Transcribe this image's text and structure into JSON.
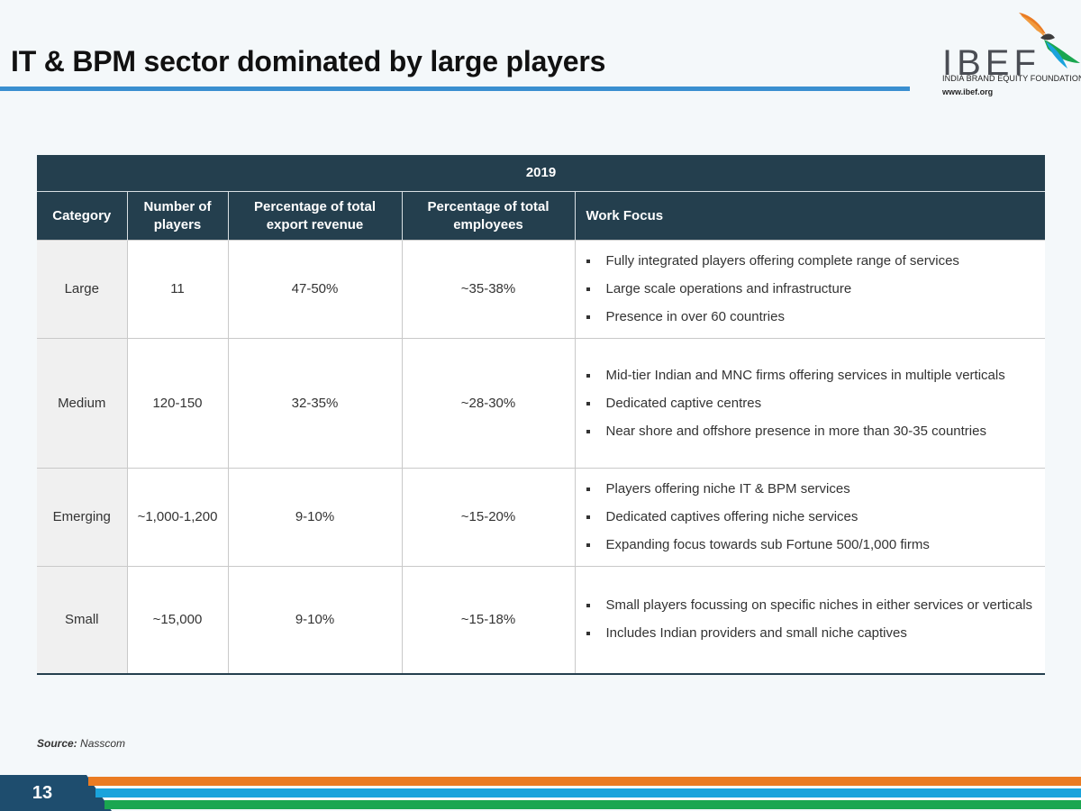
{
  "page": {
    "title": "IT & BPM sector dominated by large players",
    "page_number": "13"
  },
  "logo": {
    "wordmark": "IBEF",
    "foundation": "INDIA BRAND EQUITY FOUNDATION",
    "url": "www.ibef.org"
  },
  "table": {
    "year": "2019",
    "headers": [
      "Category",
      "Number of players",
      "Percentage of total export revenue",
      "Percentage of total employees",
      "Work Focus"
    ],
    "rows": [
      {
        "category": "Large",
        "players": "11",
        "export_revenue": "47-50%",
        "employees": "~35-38%",
        "focus": [
          "Fully integrated players offering complete range of services",
          "Large scale operations and infrastructure",
          "Presence in over 60 countries"
        ]
      },
      {
        "category": "Medium",
        "players": "120-150",
        "export_revenue": "32-35%",
        "employees": "~28-30%",
        "focus": [
          "Mid-tier Indian and MNC firms offering services in multiple verticals",
          "Dedicated captive centres",
          "Near shore and offshore presence in more than 30-35 countries"
        ]
      },
      {
        "category": "Emerging",
        "players": "~1,000-1,200",
        "export_revenue": "9-10%",
        "employees": "~15-20%",
        "focus": [
          "Players offering niche IT & BPM services",
          "Dedicated captives offering niche services",
          "Expanding focus towards sub Fortune 500/1,000 firms"
        ]
      },
      {
        "category": "Small",
        "players": "~15,000",
        "export_revenue": "9-10%",
        "employees": "~15-18%",
        "focus": [
          "Small players focussing on specific niches in either services or verticals",
          "Includes Indian providers and small niche captives"
        ]
      }
    ]
  },
  "source": {
    "label": "Source:",
    "value": "Nasscom"
  },
  "colors": {
    "header_bg": "#243f4e",
    "title_rule": "#3a8fd0",
    "stripe_orange": "#ea7b22",
    "stripe_blue": "#1aa3dc",
    "stripe_green": "#1aa650",
    "page_box": "#1e4d6e"
  },
  "icons": {
    "logo_bird": "ibef-bird-logo-icon"
  }
}
